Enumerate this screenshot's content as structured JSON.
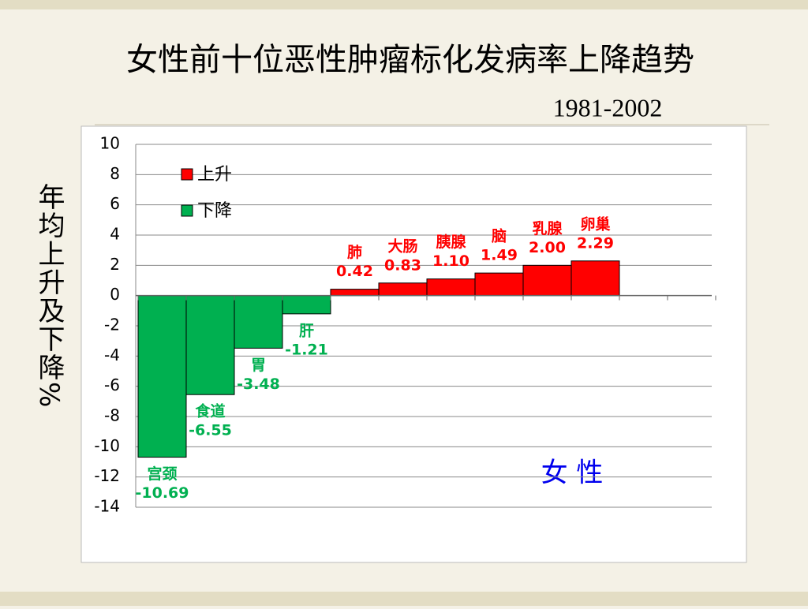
{
  "chart_data": {
    "type": "bar",
    "title": "女性前十位恶性肿瘤标化发病率上降趋势",
    "subtitle": "1981-2002",
    "y_label": "年均上升及下降%",
    "annotation": "女 性",
    "categories": [
      "宫颈",
      "食道",
      "胃",
      "肝",
      "肺",
      "大肠",
      "胰腺",
      "脑",
      "乳腺",
      "卵巢"
    ],
    "series": [
      {
        "name": "上升",
        "color": "#ff0000",
        "values": [
          null,
          null,
          null,
          null,
          0.42,
          0.83,
          1.1,
          1.49,
          2.0,
          2.29
        ],
        "value_labels": [
          null,
          null,
          null,
          null,
          "0.42",
          "0.83",
          "1.10",
          "1.49",
          "2.00",
          "2.29"
        ]
      },
      {
        "name": "下降",
        "color": "#00b050",
        "values": [
          -10.69,
          -6.55,
          -3.48,
          -1.21,
          null,
          null,
          null,
          null,
          null,
          null
        ],
        "value_labels": [
          "-10.69",
          "-6.55",
          "-3.48",
          "-1.21",
          null,
          null,
          null,
          null,
          null,
          null
        ]
      }
    ],
    "ylim": [
      -14,
      10
    ],
    "yticks": [
      -14,
      -12,
      -10,
      -8,
      -6,
      -4,
      -2,
      0,
      2,
      4,
      6,
      8,
      10
    ],
    "grid": true,
    "legend": "upper left"
  }
}
